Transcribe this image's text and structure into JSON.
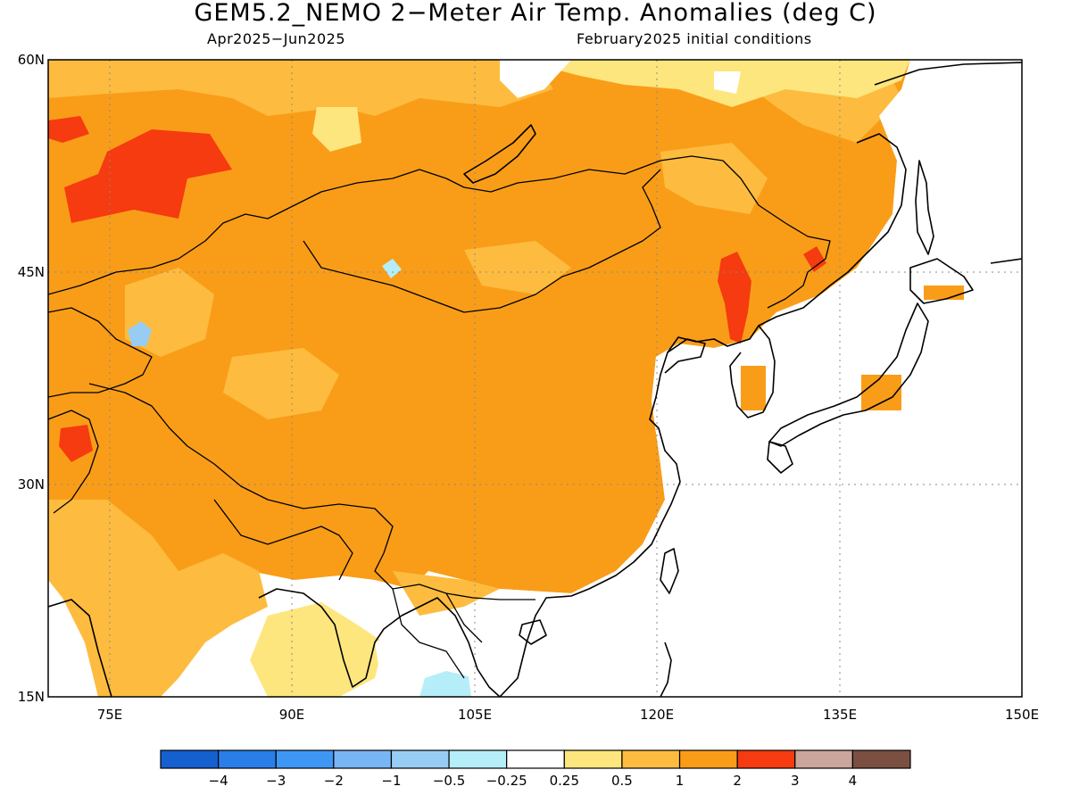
{
  "title": "GEM5.2_NEMO 2−Meter Air Temp. Anomalies (deg C)",
  "subtitle_left": "Apr2025−Jun2025",
  "subtitle_right": "February2025 initial conditions",
  "map": {
    "region": "East and Central Asia",
    "lon_range": [
      70,
      150
    ],
    "lat_range": [
      15,
      60
    ],
    "lat_labels": [
      "60N",
      "45N",
      "30N",
      "15N"
    ],
    "lon_labels": [
      "75E",
      "90E",
      "105E",
      "120E",
      "135E",
      "150E"
    ],
    "grid": true
  },
  "legend": {
    "colors": [
      "#1560cf",
      "#2a7ee8",
      "#3f97f5",
      "#78b5f5",
      "#97cdf4",
      "#b5eef8",
      "#ffffff",
      "#fee67f",
      "#fdbc3f",
      "#f99d18",
      "#f53b0f",
      "#cba69c",
      "#7b5043"
    ],
    "labels": [
      "−4",
      "−3",
      "−2",
      "−1",
      "−0.5",
      "−0.25",
      "0.25",
      "0.5",
      "1",
      "2",
      "3",
      "4"
    ]
  }
}
